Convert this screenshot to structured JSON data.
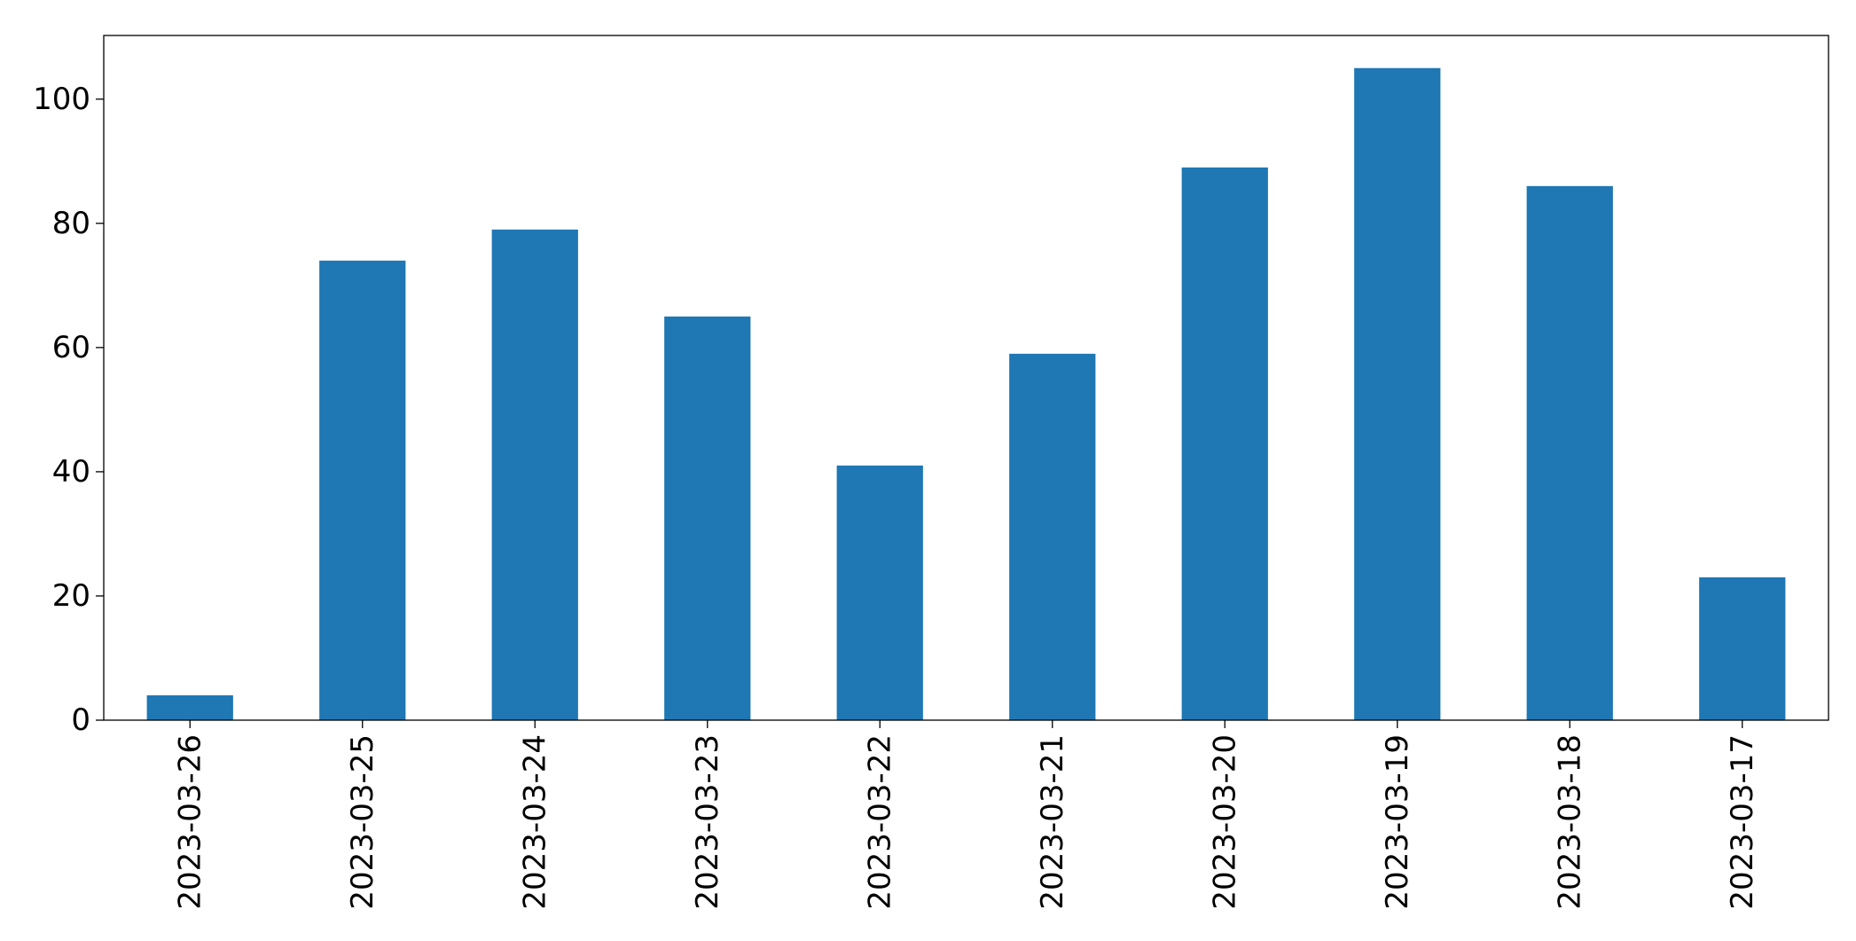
{
  "chart_data": {
    "type": "bar",
    "categories": [
      "2023-03-26",
      "2023-03-25",
      "2023-03-24",
      "2023-03-23",
      "2023-03-22",
      "2023-03-21",
      "2023-03-20",
      "2023-03-19",
      "2023-03-18",
      "2023-03-17"
    ],
    "values": [
      4,
      74,
      79,
      65,
      41,
      59,
      89,
      105,
      86,
      23
    ],
    "color": "#1f77b4",
    "ylim": [
      0,
      110.25
    ],
    "yticks": [
      0,
      20,
      40,
      60,
      80,
      100
    ],
    "grid": false
  }
}
